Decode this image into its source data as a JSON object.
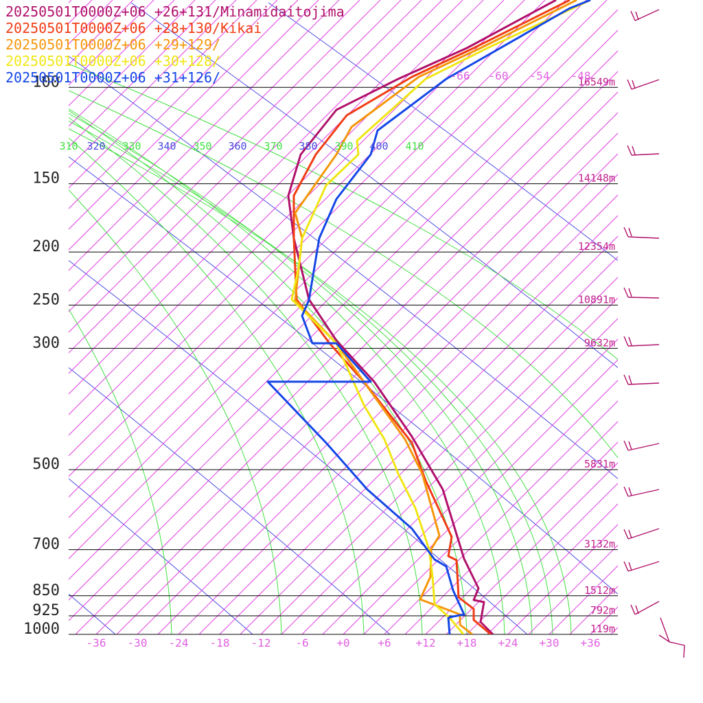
{
  "chart_data": {
    "type": "line",
    "x_unit": "degC",
    "y_unit": "hPa",
    "xlim": [
      -40,
      40
    ],
    "ylim": [
      1000,
      100
    ],
    "pressure_levels": [
      "100",
      "150",
      "200",
      "250",
      "300",
      "500",
      "700",
      "850",
      "925",
      "1000"
    ],
    "temperature_ticks": [
      "-36",
      "-30",
      "-24",
      "-18",
      "-12",
      "-6",
      "+0",
      "+6",
      "+12",
      "+18",
      "+24",
      "+30",
      "+36"
    ],
    "height_labels": [
      "16549m",
      "14148m",
      "12354m",
      "10891m",
      "9632m",
      "5831m",
      "3132m",
      "1512m",
      "792m",
      "119m"
    ],
    "theta_labels": [
      "310",
      "320",
      "330",
      "340",
      "350",
      "360",
      "370",
      "380",
      "390",
      "400",
      "410"
    ],
    "upper_temp_labels": [
      "-66",
      "-60",
      "-54",
      "-48"
    ],
    "series": [
      {
        "name": "20250501T0000Z+06 +26+131/Minamidaitojima",
        "color": "#b0106a"
      },
      {
        "name": "20250501T0000Z+06 +28+130/Kikai",
        "color": "#f03c14"
      },
      {
        "name": "20250501T0000Z+06 +29+129/",
        "color": "#f5960a"
      },
      {
        "name": "20250501T0000Z+06 +30+128/",
        "color": "#f0e614"
      },
      {
        "name": "20250501T0000Z+06 +31+126/",
        "color": "#1446e6"
      }
    ]
  }
}
